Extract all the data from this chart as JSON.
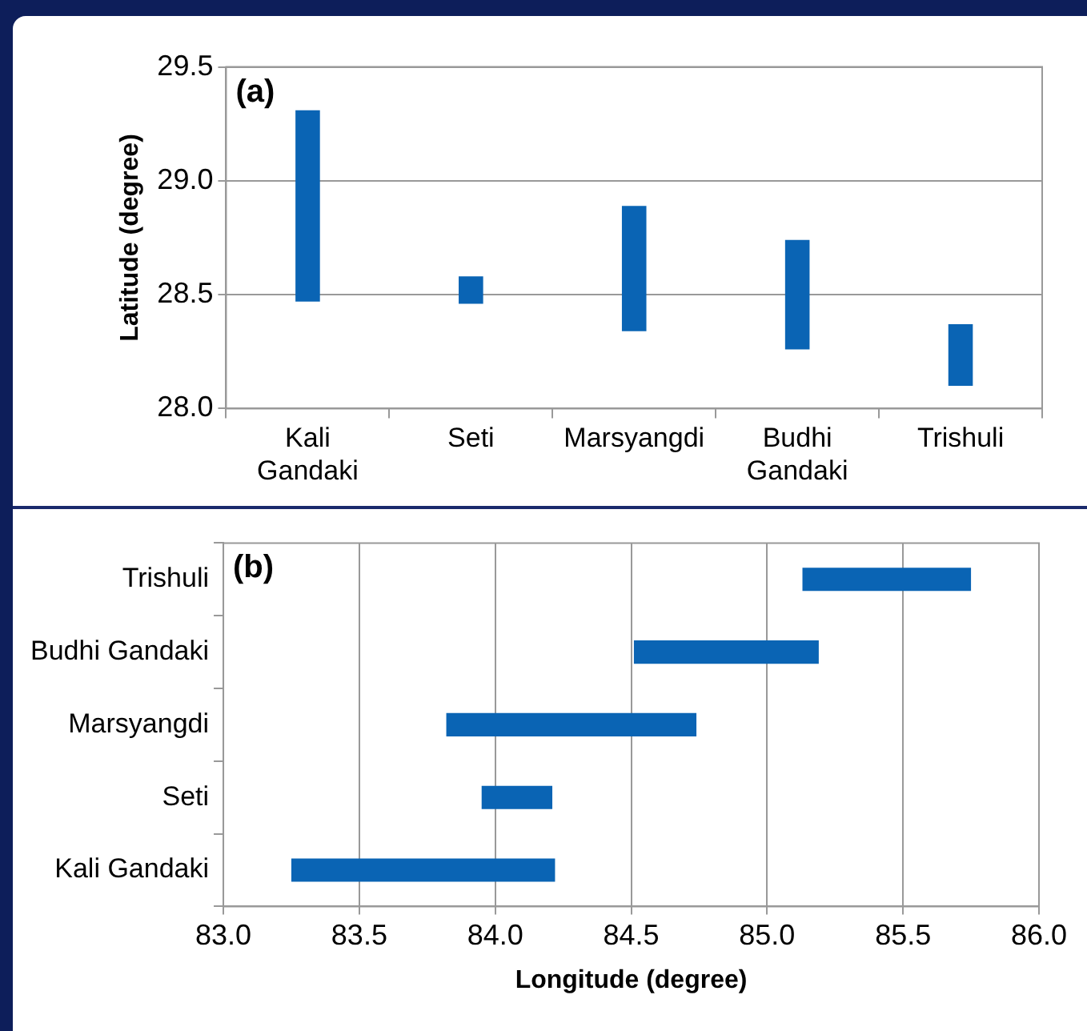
{
  "chart_data": [
    {
      "type": "bar",
      "annotations": [
        "(a)"
      ],
      "ylabel": "Latitude (degree)",
      "categories": [
        "Kali Gandaki",
        "Seti",
        "Marsyangdi",
        "Budhi Gandaki",
        "Trishuli"
      ],
      "base": [
        28.47,
        28.46,
        28.34,
        28.26,
        28.1
      ],
      "values": [
        0.84,
        0.12,
        0.55,
        0.48,
        0.27
      ],
      "color": "#0a64b4",
      "ylim": [
        28,
        29.5
      ],
      "yticks": [
        {
          "value": 28,
          "label": "28.0"
        },
        {
          "value": 28.5,
          "label": "28.5"
        },
        {
          "value": 29,
          "label": "29.0"
        },
        {
          "value": 29.5,
          "label": "29.5"
        }
      ],
      "grid": "y"
    },
    {
      "type": "bar",
      "orientation": "horizontal",
      "annotations": [
        "(b)"
      ],
      "xlabel": "Longitude (degree)",
      "categories": [
        "Trishuli",
        "Budhi Gandaki",
        "Marsyangdi",
        "Seti",
        "Kali Gandaki"
      ],
      "base": [
        85.13,
        84.51,
        83.82,
        83.95,
        83.25
      ],
      "values": [
        0.62,
        0.68,
        0.92,
        0.26,
        0.97
      ],
      "color": "#0a64b4",
      "xlim": [
        83,
        86
      ],
      "xticks": [
        {
          "value": 83,
          "label": "83.0"
        },
        {
          "value": 83.5,
          "label": "83.5"
        },
        {
          "value": 84,
          "label": "84.0"
        },
        {
          "value": 84.5,
          "label": "84.5"
        },
        {
          "value": 85,
          "label": "85.0"
        },
        {
          "value": 85.5,
          "label": "85.5"
        },
        {
          "value": 86,
          "label": "86.0"
        }
      ],
      "grid": "x"
    }
  ]
}
